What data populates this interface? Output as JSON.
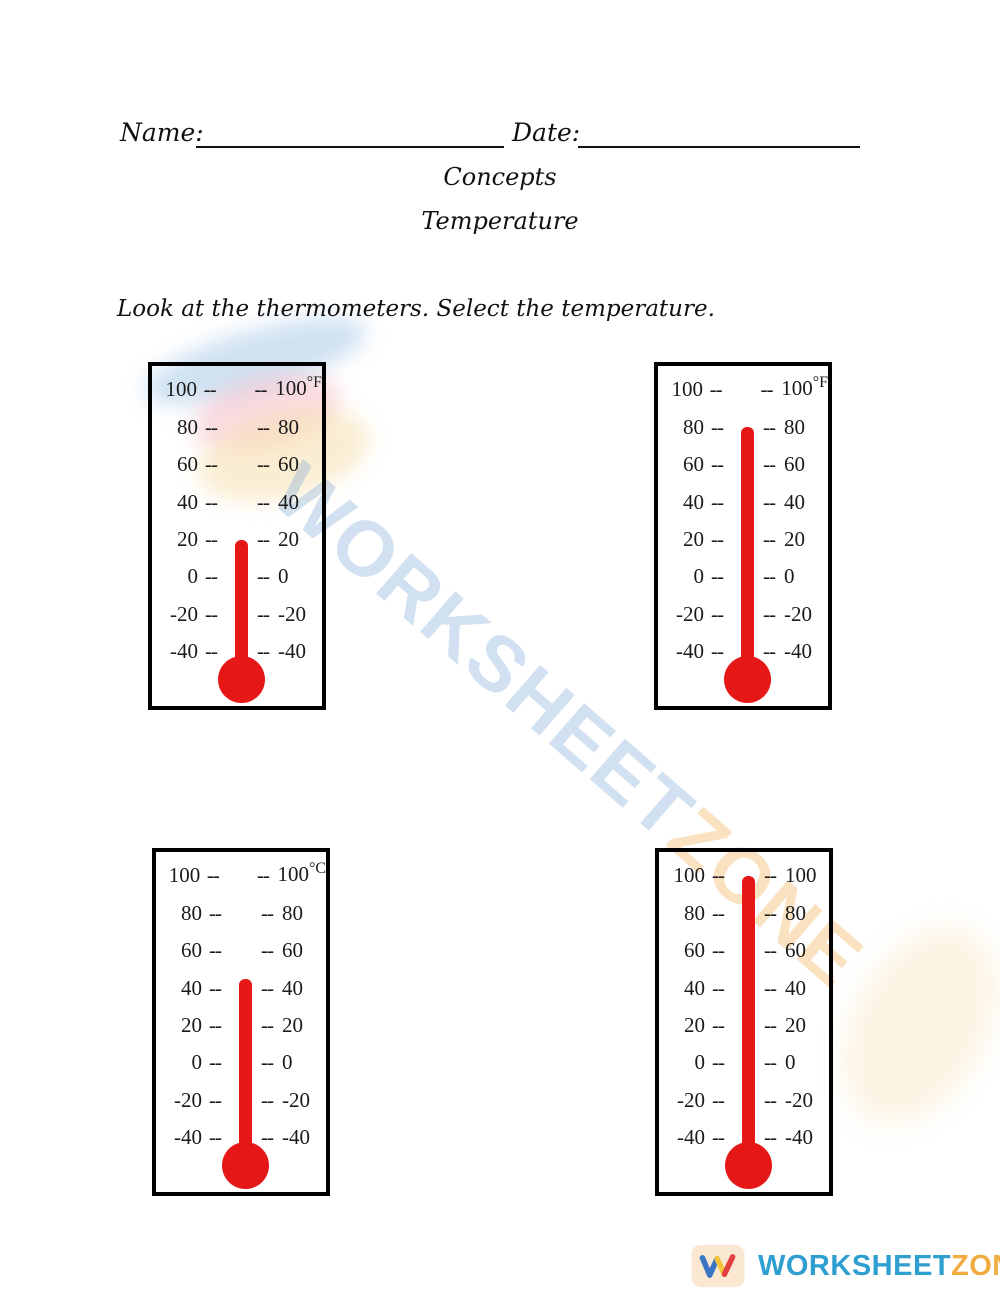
{
  "header": {
    "name_label": "Name:",
    "date_label": "Date:",
    "course_title": "Concepts",
    "worksheet_title": "Temperature"
  },
  "instruction": "Look at the thermometers. Select the temperature.",
  "thermometer_scale": {
    "labels": [
      "100",
      "80",
      "60",
      "40",
      "20",
      "0",
      "-20",
      "-40"
    ],
    "tick": "--",
    "max": 100,
    "min": -40,
    "step": 20
  },
  "thermometers": [
    {
      "name": "thermometer-1",
      "unit": "°F",
      "reading_value": 20
    },
    {
      "name": "thermometer-2",
      "unit": "°F",
      "reading_value": 80
    },
    {
      "name": "thermometer-3",
      "unit": "°C",
      "reading_value": 45
    },
    {
      "name": "thermometer-4",
      "unit": "",
      "reading_value": 100
    }
  ],
  "watermark": {
    "blue_text": "WORKSHEET",
    "orange_text": "ZONE"
  },
  "footer": {
    "brand_blue": "WORKSHEET",
    "brand_orange": "ZONE"
  },
  "colors": {
    "mercury_red": "#e51717",
    "box_border": "#000000",
    "scale_text": "#1b1b1b",
    "footer_blue": "#2f9fd0",
    "footer_orange": "#f0ac3e"
  }
}
